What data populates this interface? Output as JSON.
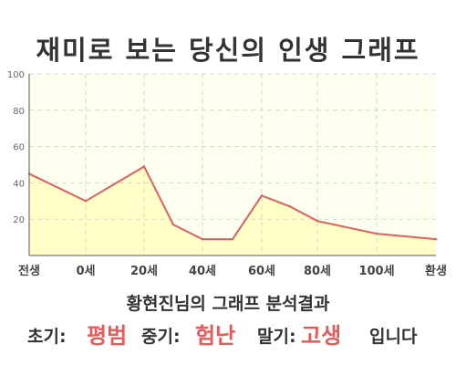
{
  "title": "재미로 보는 당신의 인생 그래프",
  "subtitle": "황현진님의 그래프 분석결과",
  "result": {
    "early_label": "초기:",
    "early_value": "평범",
    "mid_label": "중기:",
    "mid_value": "험난",
    "late_label": "말기:",
    "late_value": "고생",
    "suffix": "입니다"
  },
  "colors": {
    "line": "#e05f5f",
    "fill": "#ffffc8",
    "plot_bg": "#fffff0",
    "accent_text": "#e55b5b"
  },
  "chart_data": {
    "type": "area",
    "x_tick_labels": [
      "전생",
      "0세",
      "20세",
      "40세",
      "60세",
      "80세",
      "100세",
      "환생"
    ],
    "y_ticks": [
      20,
      40,
      60,
      80,
      100
    ],
    "ylim": [
      0,
      100
    ],
    "grid": true,
    "series": [
      {
        "points": [
          {
            "x": "전생",
            "y": 45
          },
          {
            "x": "0세",
            "y": 30
          },
          {
            "x": "20세",
            "y": 49
          },
          {
            "x": "30세",
            "y": 17
          },
          {
            "x": "40세",
            "y": 9
          },
          {
            "x": "50세",
            "y": 9
          },
          {
            "x": "60세",
            "y": 33
          },
          {
            "x": "70세",
            "y": 27
          },
          {
            "x": "80세",
            "y": 19
          },
          {
            "x": "100세",
            "y": 12
          },
          {
            "x": "환생",
            "y": 9
          }
        ]
      }
    ]
  }
}
